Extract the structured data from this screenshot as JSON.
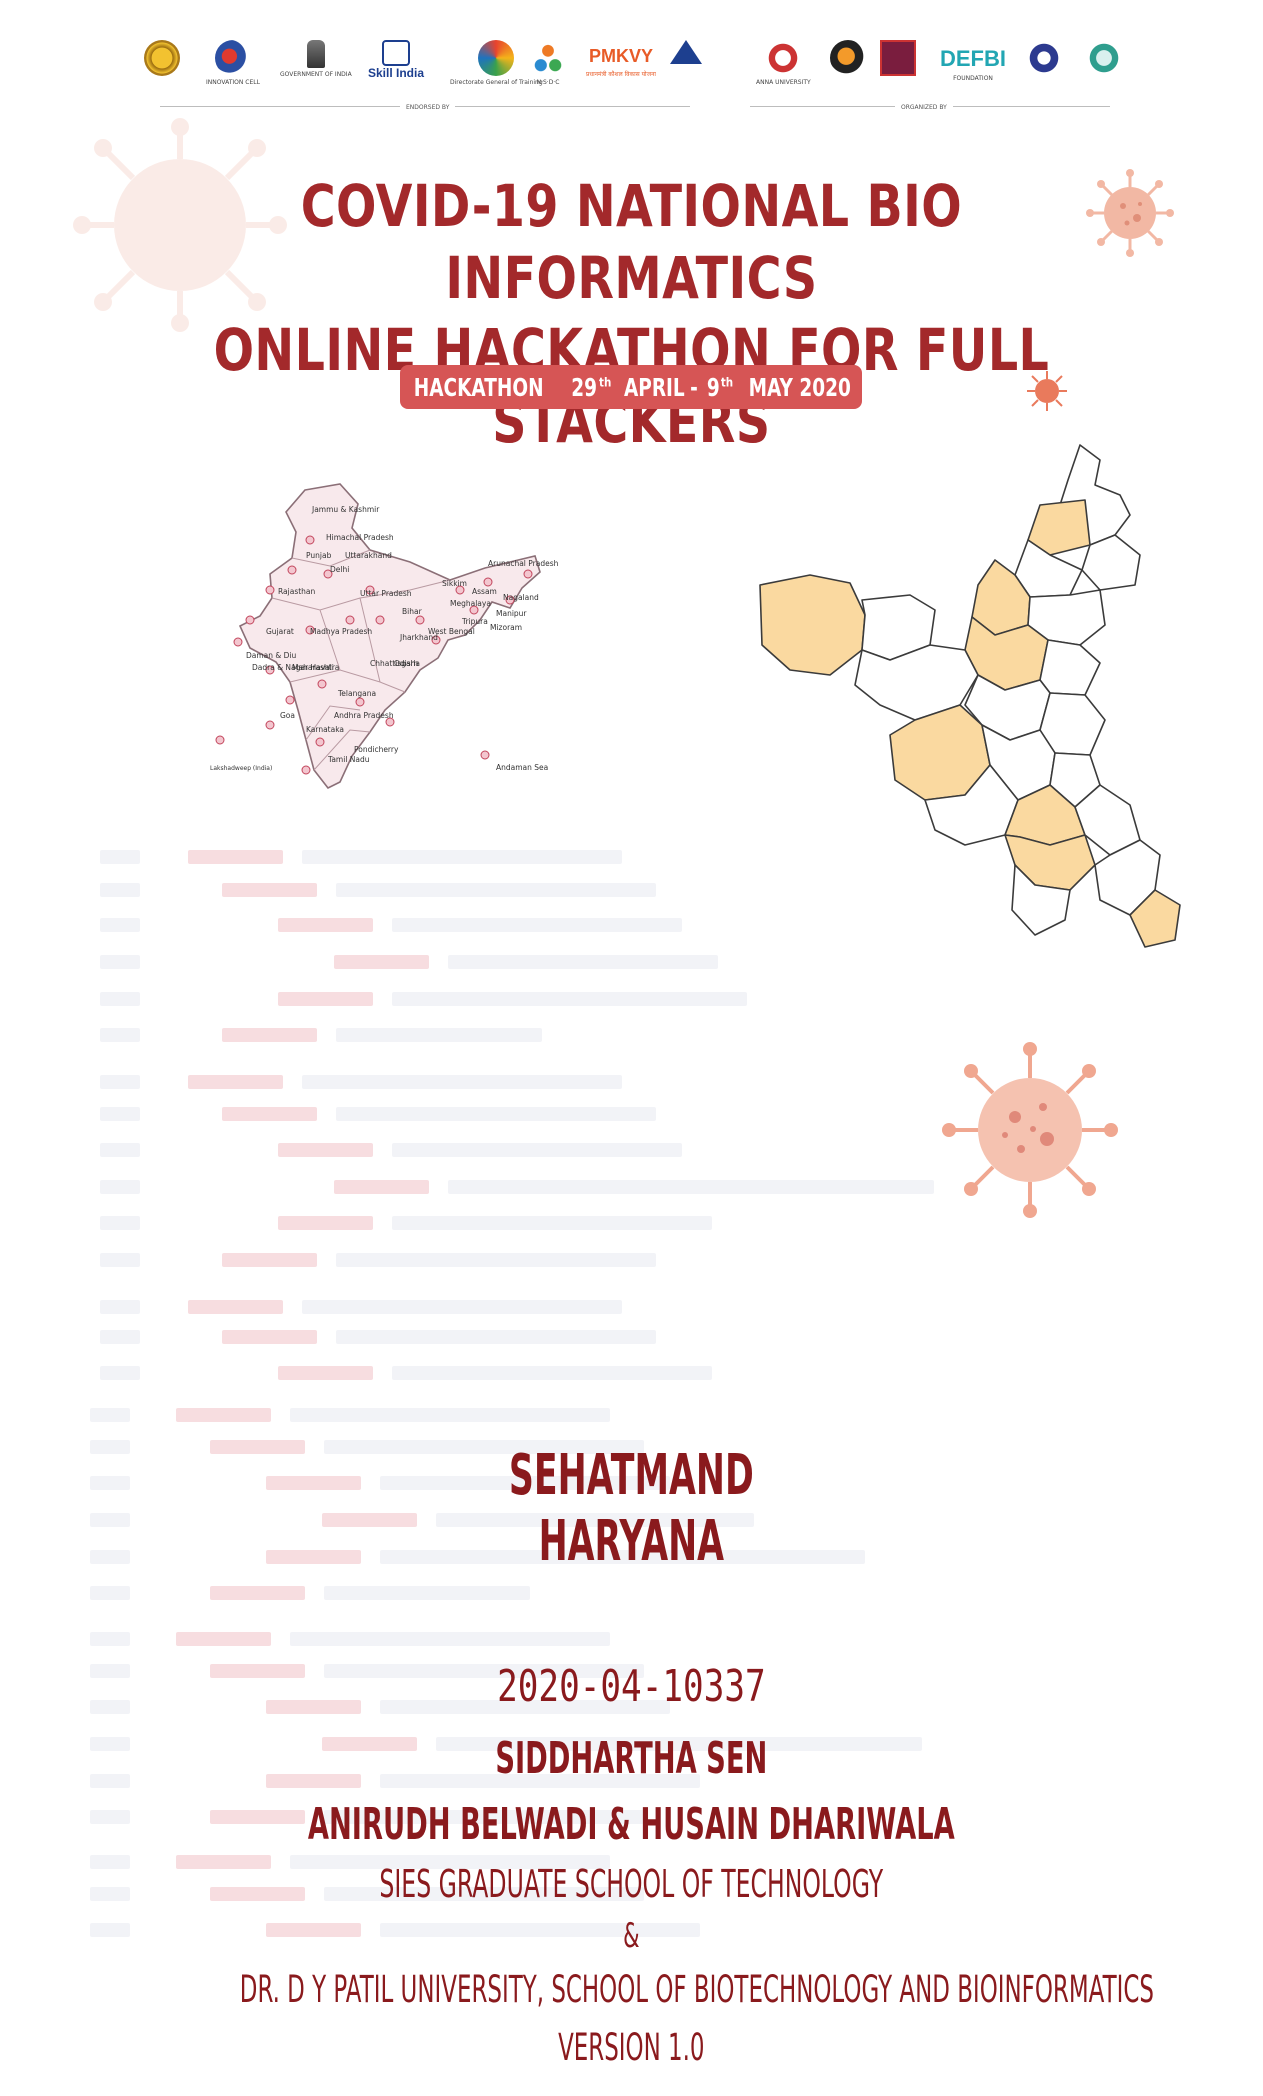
{
  "header": {
    "endorsed_label": "ENDORSED BY",
    "organized_label": "ORGANIZED BY",
    "logos": [
      {
        "name": "aicte-logo",
        "text": "AICTE"
      },
      {
        "name": "innovation-cell-logo",
        "text": "INNOVATION CELL"
      },
      {
        "name": "msde-logo",
        "text": "GOVERNMENT OF INDIA"
      },
      {
        "name": "skill-india-logo",
        "text": "Skill India"
      },
      {
        "name": "dgt-logo",
        "text": "Directorate General of Training"
      },
      {
        "name": "nsdc-logo",
        "text": "N·S·D·C"
      },
      {
        "name": "pmkvy-logo",
        "text": "PMKVY"
      },
      {
        "name": "emblem-logo",
        "text": ""
      },
      {
        "name": "anna-university-logo",
        "text": "ANNA UNIVERSITY"
      },
      {
        "name": "organizer-logo-2",
        "text": ""
      },
      {
        "name": "organizer-logo-3",
        "text": ""
      },
      {
        "name": "defbi-logo",
        "text": "DEFBI"
      },
      {
        "name": "organizer-logo-5",
        "text": ""
      },
      {
        "name": "organizer-logo-6",
        "text": ""
      }
    ]
  },
  "title": {
    "line1": "COVID-19 NATIONAL BIO INFORMATICS",
    "line2": "ONLINE HACKATHON FOR FULL STACKERS"
  },
  "event": {
    "label": "HACKATHON",
    "start_day": "29",
    "start_sup": "th",
    "start_month": "APRIL",
    "separator": "-",
    "end_day": "9",
    "end_sup": "th",
    "end_month": "MAY 2020"
  },
  "india_map": {
    "labels": [
      "Jammu & Kashmir",
      "Himachal Pradesh",
      "Punjab",
      "Uttarakhand",
      "Delhi",
      "Rajasthan",
      "Uttar Pradesh",
      "Sikkim",
      "Arunachal Pradesh",
      "Assam",
      "Nagaland",
      "Meghalaya",
      "Manipur",
      "Bihar",
      "Tripura",
      "Mizoram",
      "West Bengal",
      "Gujarat",
      "Madhya Pradesh",
      "Jharkhand",
      "Daman & Diu",
      "Dadra & Nagar Havali",
      "Maharashtra",
      "Chhattisgarh",
      "Odisha",
      "Telangana",
      "Goa",
      "Karnataka",
      "Andhra Pradesh",
      "Lakshadweep (India)",
      "Pondicherry",
      "Tamil Nadu",
      "Andaman Sea"
    ]
  },
  "haryana_map": {
    "highlight_color": "#fad9a0",
    "outline_color": "#3b3b3b"
  },
  "project": {
    "name_line1": "SEHATMAND",
    "name_line2": "HARYANA",
    "id": "2020-04-10337",
    "author": "SIDDHARTHA SEN",
    "coauthors": "ANIRUDH BELWADI & HUSAIN DHARIWALA",
    "institution1": "SIES GRADUATE SCHOOL OF TECHNOLOGY",
    "ampersand": "&",
    "institution2": "DR. D Y PATIL UNIVERSITY, SCHOOL OF BIOTECHNOLOGY AND BIOINFORMATICS",
    "version": "VERSION 1.0"
  },
  "colors": {
    "title": "#a3292b",
    "text": "#8a1a1d",
    "pill": "#d65555",
    "virus": "#e8a28a"
  }
}
